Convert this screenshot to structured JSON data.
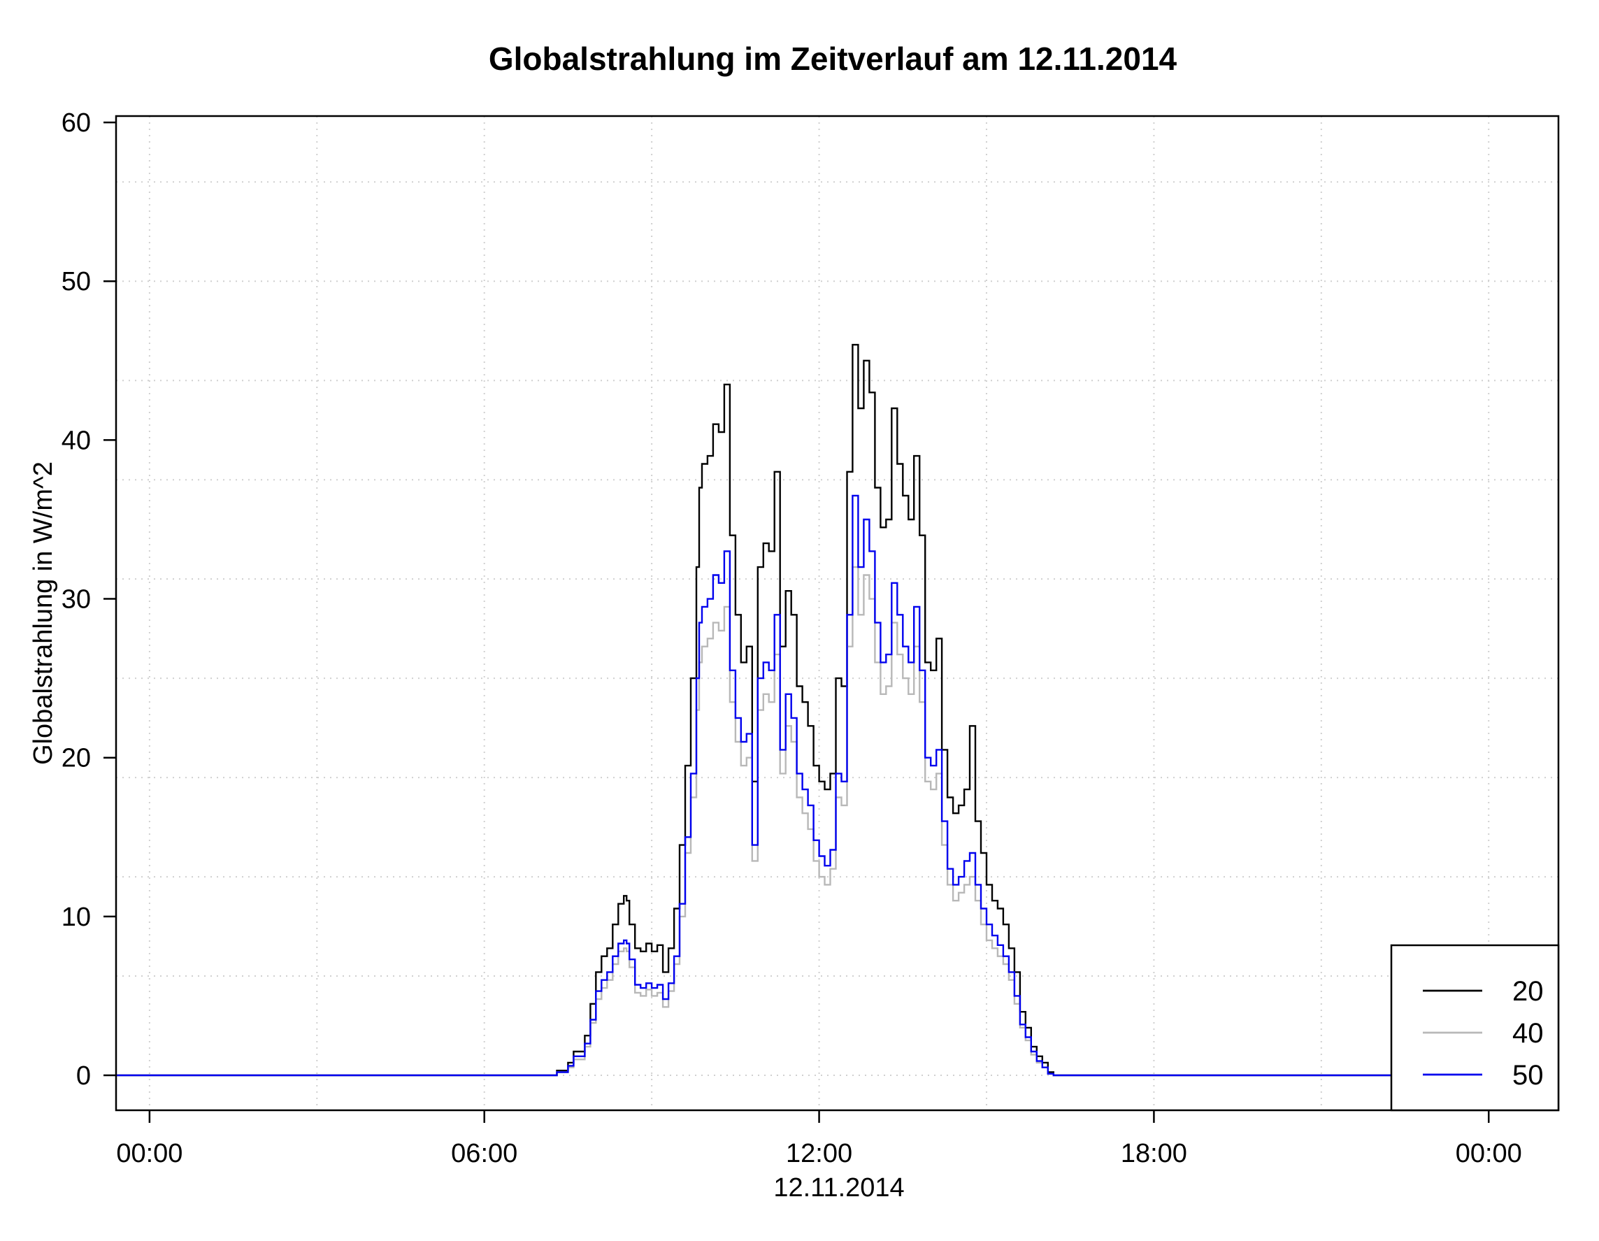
{
  "chart_data": {
    "type": "line",
    "title": "Globalstrahlung im Zeitverlauf am 12.11.2014",
    "xlabel": "12.11.2014",
    "ylabel": "Globalstrahlung in W/m^2",
    "xlim": [
      -0.6,
      25.25
    ],
    "ylim": [
      -2.2,
      60.4
    ],
    "x_ticks": [
      0,
      6,
      12,
      18,
      24
    ],
    "x_tick_labels": [
      "00:00",
      "06:00",
      "12:00",
      "18:00",
      "00:00"
    ],
    "y_ticks": [
      0,
      10,
      20,
      30,
      40,
      50,
      60
    ],
    "y_tick_labels": [
      "0",
      "10",
      "20",
      "30",
      "40",
      "50",
      "60"
    ],
    "x_unit": "hours",
    "grid": true,
    "legend_position": "bottom-right",
    "colors": {
      "20": "#000000",
      "40": "#b8b8b8",
      "50": "#0000ee"
    },
    "series": [
      {
        "name": "20",
        "color": "#000000",
        "x": [
          -0.6,
          7.2,
          7.3,
          7.5,
          7.6,
          7.8,
          7.9,
          8.0,
          8.1,
          8.2,
          8.3,
          8.4,
          8.5,
          8.55,
          8.6,
          8.7,
          8.8,
          8.9,
          9.0,
          9.1,
          9.2,
          9.3,
          9.4,
          9.5,
          9.6,
          9.7,
          9.8,
          9.85,
          9.9,
          10.0,
          10.1,
          10.2,
          10.3,
          10.4,
          10.5,
          10.6,
          10.7,
          10.8,
          10.9,
          11.0,
          11.1,
          11.2,
          11.3,
          11.4,
          11.5,
          11.6,
          11.7,
          11.8,
          11.9,
          12.0,
          12.1,
          12.2,
          12.3,
          12.4,
          12.5,
          12.6,
          12.7,
          12.8,
          12.9,
          13.0,
          13.1,
          13.2,
          13.3,
          13.4,
          13.5,
          13.6,
          13.7,
          13.8,
          13.9,
          14.0,
          14.1,
          14.2,
          14.3,
          14.4,
          14.5,
          14.6,
          14.7,
          14.8,
          14.9,
          15.0,
          15.1,
          15.2,
          15.3,
          15.4,
          15.5,
          15.6,
          15.7,
          15.8,
          15.9,
          16.0,
          16.1,
          16.2,
          16.3,
          16.4,
          16.5,
          25.25
        ],
        "y": [
          0,
          0,
          0.3,
          0.8,
          1.5,
          2.5,
          4.5,
          6.5,
          7.5,
          8.0,
          9.5,
          10.8,
          11.3,
          11.0,
          9.5,
          8.0,
          7.8,
          8.3,
          7.8,
          8.2,
          6.5,
          8.0,
          10.5,
          14.5,
          19.5,
          25.0,
          32.0,
          37.0,
          38.5,
          39.0,
          41.0,
          40.5,
          43.5,
          34.0,
          29.0,
          26.0,
          27.0,
          18.5,
          32.0,
          33.5,
          33.0,
          38.0,
          27.0,
          30.5,
          29.0,
          24.5,
          23.5,
          22.0,
          19.5,
          18.5,
          18.0,
          19.0,
          25.0,
          24.5,
          38.0,
          46.0,
          42.0,
          45.0,
          43.0,
          37.0,
          34.5,
          35.0,
          42.0,
          38.5,
          36.5,
          35.0,
          39.0,
          34.0,
          26.0,
          25.5,
          27.5,
          20.5,
          17.5,
          16.5,
          17.0,
          18.0,
          22.0,
          16.0,
          14.0,
          12.0,
          11.0,
          10.5,
          9.5,
          8.0,
          6.5,
          4.0,
          3.0,
          1.8,
          1.2,
          0.8,
          0.2,
          0,
          0,
          0,
          0,
          0
        ]
      },
      {
        "name": "40",
        "color": "#b8b8b8",
        "x": [
          -0.6,
          7.2,
          7.3,
          7.5,
          7.6,
          7.8,
          7.9,
          8.0,
          8.1,
          8.2,
          8.3,
          8.4,
          8.5,
          8.55,
          8.6,
          8.7,
          8.8,
          8.9,
          9.0,
          9.1,
          9.2,
          9.3,
          9.4,
          9.5,
          9.6,
          9.7,
          9.8,
          9.85,
          9.9,
          10.0,
          10.1,
          10.2,
          10.3,
          10.4,
          10.5,
          10.6,
          10.7,
          10.8,
          10.9,
          11.0,
          11.1,
          11.2,
          11.3,
          11.4,
          11.5,
          11.6,
          11.7,
          11.8,
          11.9,
          12.0,
          12.1,
          12.2,
          12.3,
          12.4,
          12.5,
          12.6,
          12.7,
          12.8,
          12.9,
          13.0,
          13.1,
          13.2,
          13.3,
          13.4,
          13.5,
          13.6,
          13.7,
          13.8,
          13.9,
          14.0,
          14.1,
          14.2,
          14.3,
          14.4,
          14.5,
          14.6,
          14.7,
          14.8,
          14.9,
          15.0,
          15.1,
          15.2,
          15.3,
          15.4,
          15.5,
          15.6,
          15.7,
          15.8,
          15.9,
          16.0,
          16.1,
          16.2,
          16.3,
          16.4,
          16.5,
          25.25
        ],
        "y": [
          0,
          0,
          0.2,
          0.5,
          1.0,
          1.8,
          3.3,
          4.8,
          5.5,
          6.0,
          7.0,
          7.8,
          8.0,
          7.8,
          6.8,
          5.2,
          5.0,
          5.4,
          5.0,
          5.2,
          4.3,
          5.3,
          7.0,
          10.0,
          14.0,
          17.5,
          23.0,
          26.0,
          27.0,
          27.5,
          28.5,
          28.0,
          29.5,
          23.5,
          21.0,
          19.5,
          20.0,
          13.5,
          23.0,
          24.0,
          23.5,
          26.5,
          19.0,
          22.0,
          21.0,
          17.5,
          16.5,
          15.5,
          13.5,
          12.5,
          12.0,
          13.0,
          17.5,
          17.0,
          27.0,
          32.0,
          29.0,
          31.5,
          30.0,
          26.0,
          24.0,
          24.5,
          28.5,
          26.5,
          25.0,
          24.0,
          27.0,
          23.5,
          18.5,
          18.0,
          19.0,
          14.5,
          12.0,
          11.0,
          11.5,
          12.0,
          12.5,
          11.0,
          9.5,
          8.5,
          8.0,
          7.5,
          7.0,
          6.0,
          4.5,
          3.0,
          2.2,
          1.3,
          0.8,
          0.5,
          0.1,
          0,
          0,
          0,
          0,
          0
        ]
      },
      {
        "name": "50",
        "color": "#0000ee",
        "x": [
          -0.6,
          7.2,
          7.3,
          7.5,
          7.6,
          7.8,
          7.9,
          8.0,
          8.1,
          8.2,
          8.3,
          8.4,
          8.5,
          8.55,
          8.6,
          8.7,
          8.8,
          8.9,
          9.0,
          9.1,
          9.2,
          9.3,
          9.4,
          9.5,
          9.6,
          9.7,
          9.8,
          9.85,
          9.9,
          10.0,
          10.1,
          10.2,
          10.3,
          10.4,
          10.5,
          10.6,
          10.7,
          10.8,
          10.9,
          11.0,
          11.1,
          11.2,
          11.3,
          11.4,
          11.5,
          11.6,
          11.7,
          11.8,
          11.9,
          12.0,
          12.1,
          12.2,
          12.3,
          12.4,
          12.5,
          12.6,
          12.7,
          12.8,
          12.9,
          13.0,
          13.1,
          13.2,
          13.3,
          13.4,
          13.5,
          13.6,
          13.7,
          13.8,
          13.9,
          14.0,
          14.1,
          14.2,
          14.3,
          14.4,
          14.5,
          14.6,
          14.7,
          14.8,
          14.9,
          15.0,
          15.1,
          15.2,
          15.3,
          15.4,
          15.5,
          15.6,
          15.7,
          15.8,
          15.9,
          16.0,
          16.1,
          16.2,
          16.3,
          16.4,
          16.5,
          25.25
        ],
        "y": [
          0,
          0,
          0.2,
          0.6,
          1.2,
          2.0,
          3.5,
          5.3,
          6.0,
          6.5,
          7.5,
          8.3,
          8.5,
          8.3,
          7.3,
          5.7,
          5.5,
          5.8,
          5.5,
          5.7,
          4.8,
          5.8,
          7.5,
          10.8,
          15.0,
          19.0,
          25.0,
          28.5,
          29.5,
          30.0,
          31.5,
          31.0,
          33.0,
          25.5,
          22.5,
          21.0,
          21.5,
          14.5,
          25.0,
          26.0,
          25.5,
          29.0,
          20.5,
          24.0,
          22.5,
          19.0,
          18.0,
          17.0,
          14.8,
          13.8,
          13.2,
          14.2,
          19.0,
          18.5,
          29.0,
          36.5,
          32.0,
          35.0,
          33.0,
          28.5,
          26.0,
          26.5,
          31.0,
          29.0,
          27.0,
          26.0,
          29.5,
          25.5,
          20.0,
          19.5,
          20.5,
          16.0,
          13.0,
          12.0,
          12.5,
          13.5,
          14.0,
          12.0,
          10.5,
          9.5,
          8.8,
          8.2,
          7.5,
          6.5,
          5.0,
          3.2,
          2.4,
          1.5,
          0.9,
          0.5,
          0.1,
          0,
          0,
          0,
          0,
          0
        ]
      }
    ]
  }
}
